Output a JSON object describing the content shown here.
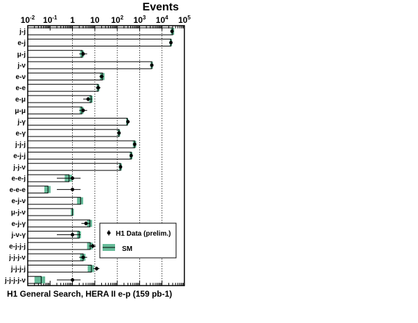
{
  "chart_data": {
    "type": "bar",
    "orientation": "horizontal",
    "title": "Events",
    "xscale": "log",
    "xlim": [
      0.01,
      100000
    ],
    "x_tick_labels": [
      "10-2",
      "10-1",
      "1",
      "10",
      "102",
      "103",
      "104",
      "105"
    ],
    "grid": "vertical dotted at decades 1, 10, 100, 1000, 10000",
    "caption": "H1 General Search, HERA II e-p (159 pb-1)",
    "categories": [
      "j-j",
      "e-j",
      "μ-j",
      "j-ν",
      "e-ν",
      "e-e",
      "e-μ",
      "μ-μ",
      "j-γ",
      "e-γ",
      "j-j-j",
      "e-j-j",
      "j-j-ν",
      "e-e-j",
      "e-e-e",
      "e-j-ν",
      "μ-j-ν",
      "e-j-γ",
      "j-ν-γ",
      "e-j-j-j",
      "j-j-j-ν",
      "j-j-j-j",
      "j-j-j-j-ν"
    ],
    "series": [
      {
        "name": "SM",
        "color": "#66bb99",
        "values": [
          30000,
          25000,
          2.7,
          3500,
          22,
          14,
          6.8,
          2.6,
          280,
          120,
          600,
          420,
          140,
          0.7,
          0.08,
          2.3,
          1.0,
          6.0,
          2.0,
          6.2,
          3.0,
          7.0,
          0.04
        ],
        "uncertainty_low": [
          25000,
          22000,
          2.2,
          3100,
          17,
          12,
          5.6,
          2.1,
          250,
          105,
          500,
          360,
          120,
          0.45,
          0.055,
          1.6,
          0.85,
          4.5,
          1.6,
          4.5,
          2.2,
          4.8,
          0.02
        ],
        "uncertainty_high": [
          35000,
          28000,
          3.2,
          3900,
          27,
          16,
          8.0,
          3.1,
          310,
          135,
          700,
          480,
          160,
          0.95,
          0.105,
          3.0,
          1.15,
          7.5,
          2.4,
          7.9,
          3.8,
          9.2,
          0.06
        ]
      },
      {
        "name": "H1 Data (prelim.)",
        "values": [
          28000,
          25000,
          3,
          3500,
          20,
          14,
          5,
          3,
          300,
          120,
          600,
          420,
          140,
          1,
          1,
          null,
          null,
          4,
          1,
          8,
          3,
          12,
          1
        ],
        "err_low": [
          27000,
          24500,
          2,
          3400,
          16,
          11,
          3,
          2,
          280,
          110,
          570,
          400,
          130,
          0.2,
          0.2,
          null,
          null,
          2.5,
          0.2,
          5.5,
          2,
          8.5,
          0.2
        ],
        "err_high": [
          29000,
          25500,
          4.5,
          3600,
          25,
          18,
          7.5,
          4.5,
          320,
          130,
          630,
          440,
          150,
          2.3,
          2.3,
          null,
          null,
          6,
          2.3,
          11,
          4.5,
          16,
          2.3
        ]
      }
    ],
    "legend": {
      "placement": "lower-right",
      "entries": [
        "H1 Data (prelim.)",
        "SM"
      ]
    }
  }
}
